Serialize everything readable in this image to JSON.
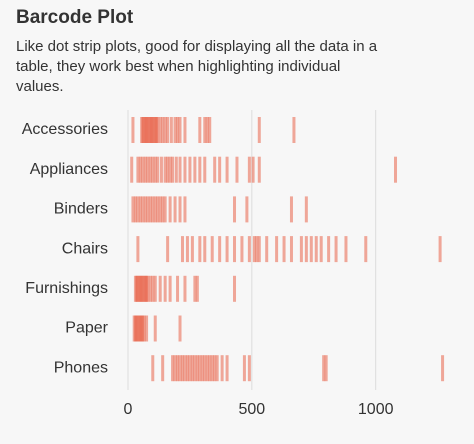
{
  "chart_data": {
    "type": "barcode",
    "title": "Barcode Plot",
    "subtitle_lines": [
      "Like dot strip plots, good for displaying all the data in a",
      "table, they work best when highlighting individual",
      "values."
    ],
    "categories": [
      "Accessories",
      "Appliances",
      "Binders",
      "Chairs",
      "Furnishings",
      "Paper",
      "Phones"
    ],
    "values": [
      [
        20,
        55,
        60,
        65,
        70,
        75,
        80,
        85,
        90,
        95,
        100,
        105,
        110,
        115,
        120,
        130,
        140,
        150,
        160,
        175,
        190,
        200,
        210,
        230,
        290,
        310,
        320,
        330,
        530,
        670
      ],
      [
        15,
        40,
        50,
        60,
        70,
        80,
        90,
        100,
        110,
        120,
        135,
        150,
        160,
        170,
        180,
        195,
        210,
        230,
        250,
        270,
        290,
        310,
        350,
        370,
        400,
        440,
        490,
        505,
        530,
        1080
      ],
      [
        20,
        30,
        40,
        50,
        60,
        70,
        80,
        90,
        100,
        110,
        120,
        130,
        140,
        150,
        170,
        190,
        210,
        230,
        430,
        480,
        660,
        720
      ],
      [
        40,
        160,
        220,
        240,
        260,
        290,
        310,
        340,
        370,
        400,
        430,
        460,
        490,
        510,
        520,
        530,
        560,
        600,
        630,
        660,
        700,
        720,
        740,
        760,
        780,
        810,
        840,
        880,
        960,
        1260
      ],
      [
        30,
        35,
        40,
        45,
        50,
        55,
        60,
        65,
        70,
        75,
        80,
        90,
        100,
        110,
        130,
        150,
        170,
        200,
        230,
        270,
        280,
        430
      ],
      [
        25,
        30,
        35,
        40,
        45,
        50,
        55,
        60,
        65,
        75,
        110,
        210
      ],
      [
        100,
        140,
        180,
        190,
        200,
        210,
        220,
        230,
        240,
        250,
        260,
        270,
        280,
        290,
        300,
        310,
        320,
        330,
        340,
        350,
        360,
        380,
        400,
        470,
        490,
        790,
        800,
        1270
      ]
    ],
    "color": "#e8553a",
    "xlim": [
      0,
      1300
    ],
    "xticks": [
      0,
      500,
      1000
    ],
    "grid": true
  }
}
